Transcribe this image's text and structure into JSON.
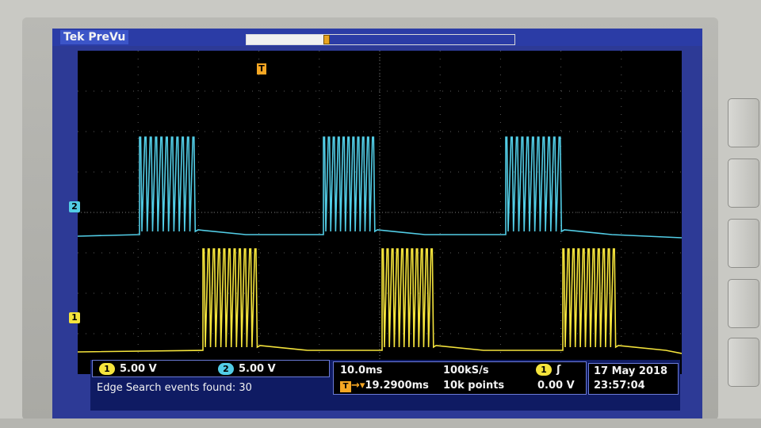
{
  "header": {
    "brand": "Tek PreVu"
  },
  "markers": {
    "ch1": "1",
    "ch2": "2",
    "trigger": "T"
  },
  "channels": [
    {
      "id": "1",
      "scale": "5.00 V",
      "color": "#f5e43c"
    },
    {
      "id": "2",
      "scale": "5.00 V",
      "color": "#52cde6"
    }
  ],
  "timebase": {
    "scale": "10.0ms",
    "sample_rate": "100kS/s",
    "record_length": "10k points",
    "trigger_position": "19.2900ms"
  },
  "trigger": {
    "source": "1",
    "slope_icon": "rising-edge-icon",
    "level": "0.00 V"
  },
  "status": {
    "edge_search": "Edge Search events found: 30"
  },
  "datetime": {
    "date": "17 May 2018",
    "time": "23:57:04"
  },
  "colors": {
    "ch1": "#f5e43c",
    "ch2": "#52cde6",
    "trigger": "#f5a623",
    "screen": "#2d3a96"
  }
}
